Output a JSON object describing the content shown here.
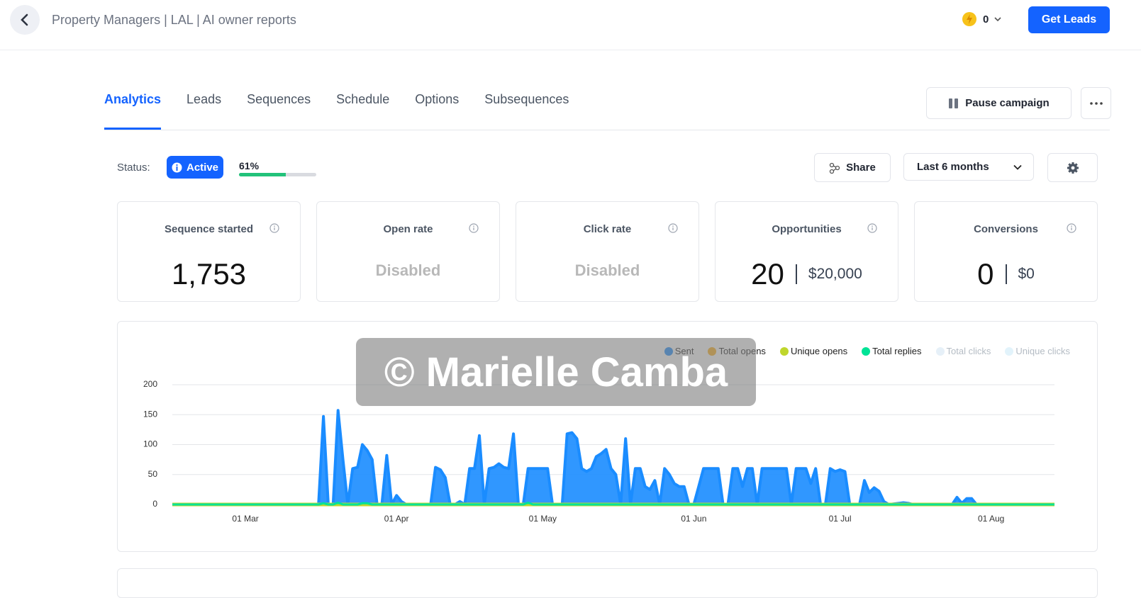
{
  "header": {
    "title": "Property Managers | LAL | AI owner reports",
    "credits": "0",
    "cta": "Get Leads"
  },
  "tabs": [
    "Analytics",
    "Leads",
    "Sequences",
    "Schedule",
    "Options",
    "Subsequences"
  ],
  "active_tab": 0,
  "actions": {
    "pause": "Pause campaign"
  },
  "status": {
    "label": "Status:",
    "badge": "Active",
    "progress": {
      "value": 61,
      "label": "61%"
    }
  },
  "toolbar": {
    "share": "Share",
    "range": "Last 6 months"
  },
  "cards": [
    {
      "title": "Sequence started",
      "value": "1,753"
    },
    {
      "title": "Open rate",
      "value": "Disabled"
    },
    {
      "title": "Click rate",
      "value": "Disabled"
    },
    {
      "title": "Opportunities",
      "value": "20",
      "amount": "$20,000"
    },
    {
      "title": "Conversions",
      "value": "0",
      "amount": "$0"
    }
  ],
  "watermark": "© Marielle Camba",
  "chart_data": {
    "type": "area",
    "x": [
      45,
      75,
      76,
      77,
      78,
      79,
      80,
      81,
      82,
      83,
      84,
      85,
      86,
      87,
      88,
      89,
      90,
      91,
      92,
      93,
      98,
      99,
      100,
      101,
      102,
      103,
      104,
      105,
      106,
      107,
      108,
      109,
      110,
      111,
      112,
      113,
      114,
      115,
      116,
      117,
      118,
      119,
      120,
      121,
      122,
      123,
      125,
      126,
      127,
      128,
      129,
      130,
      131,
      132,
      133,
      134,
      135,
      136,
      137,
      138,
      139,
      140,
      141,
      142,
      143,
      144,
      145,
      146,
      147,
      148,
      149,
      150,
      151,
      152,
      153,
      154,
      155,
      156,
      157,
      158,
      159,
      160,
      161,
      162,
      163,
      164,
      165,
      166,
      167,
      168,
      169,
      170,
      171,
      172,
      173,
      174,
      175,
      176,
      177,
      178,
      179,
      180,
      181,
      182,
      183,
      184,
      186,
      187,
      188,
      189,
      190,
      191,
      192,
      194,
      195,
      196,
      197,
      205,
      206,
      207,
      208,
      209,
      210,
      226
    ],
    "series": [
      {
        "name": "Sent",
        "color": "#1a8cff",
        "values": [
          0,
          0,
          147,
          0,
          0,
          157,
          75,
          0,
          60,
          62,
          100,
          90,
          75,
          0,
          0,
          82,
          0,
          15,
          5,
          0,
          0,
          62,
          58,
          45,
          0,
          0,
          5,
          0,
          60,
          60,
          115,
          0,
          60,
          62,
          68,
          62,
          60,
          118,
          0,
          0,
          60,
          60,
          60,
          60,
          60,
          0,
          0,
          118,
          120,
          110,
          60,
          55,
          60,
          80,
          85,
          92,
          60,
          50,
          0,
          110,
          0,
          60,
          60,
          30,
          25,
          40,
          0,
          60,
          50,
          35,
          30,
          30,
          0,
          0,
          30,
          60,
          60,
          60,
          60,
          0,
          0,
          60,
          60,
          30,
          60,
          60,
          0,
          60,
          60,
          60,
          60,
          60,
          60,
          0,
          60,
          60,
          60,
          35,
          60,
          0,
          0,
          60,
          55,
          58,
          55,
          0,
          0,
          40,
          20,
          28,
          22,
          5,
          0,
          2,
          3,
          2,
          0,
          0,
          12,
          2,
          10,
          10,
          0,
          0
        ]
      },
      {
        "name": "Total opens",
        "color": "#feb019",
        "values": [
          0,
          0,
          0,
          0,
          0,
          0,
          0,
          0,
          0,
          0,
          0,
          0,
          0,
          0,
          0,
          0,
          0,
          0,
          0,
          0,
          0,
          0,
          0,
          0,
          0,
          0,
          0,
          0,
          0,
          0,
          0,
          0,
          0,
          0,
          0,
          0,
          0,
          0,
          0,
          0,
          0,
          0,
          0,
          0,
          0,
          0,
          0,
          0,
          0,
          0,
          0,
          0,
          0,
          0,
          0,
          0,
          0,
          0,
          0,
          0,
          0,
          0,
          0,
          0,
          0,
          0,
          0,
          0,
          0,
          0,
          0,
          0,
          0,
          0,
          0,
          0,
          0,
          0,
          0,
          0,
          0,
          0,
          0,
          0,
          0,
          0,
          0,
          0,
          0,
          0,
          0,
          0,
          0,
          0,
          0,
          0,
          0,
          0,
          0,
          0,
          0,
          0,
          0,
          0,
          0,
          0,
          0,
          0,
          0,
          0,
          0,
          0,
          0,
          0,
          0,
          0,
          0,
          0,
          0,
          0,
          0,
          0,
          0,
          0
        ]
      },
      {
        "name": "Unique opens",
        "color": "#bfd62c",
        "values": [
          0,
          0,
          0,
          0,
          0,
          0,
          0,
          0,
          0,
          0,
          0,
          0,
          0,
          0,
          0,
          0,
          0,
          0,
          0,
          0,
          0,
          0,
          0,
          0,
          0,
          0,
          0,
          0,
          0,
          0,
          0,
          0,
          0,
          0,
          0,
          0,
          0,
          0,
          0,
          0,
          0,
          0,
          0,
          0,
          0,
          0,
          0,
          0,
          0,
          0,
          0,
          0,
          0,
          0,
          0,
          0,
          0,
          0,
          0,
          0,
          0,
          0,
          0,
          0,
          0,
          0,
          0,
          0,
          0,
          0,
          0,
          0,
          0,
          0,
          0,
          0,
          0,
          0,
          0,
          0,
          0,
          0,
          0,
          0,
          0,
          0,
          0,
          0,
          0,
          0,
          0,
          0,
          0,
          0,
          0,
          0,
          0,
          0,
          0,
          0,
          0,
          0,
          0,
          0,
          0,
          0,
          0,
          0,
          0,
          0,
          0,
          0,
          0,
          0,
          0,
          0,
          0,
          0,
          0,
          0,
          0,
          0,
          0,
          0
        ]
      },
      {
        "name": "Total replies",
        "color": "#00e396",
        "values": [
          0,
          0,
          2,
          0,
          0,
          3,
          0,
          0,
          0,
          0,
          2,
          2,
          0,
          0,
          0,
          0,
          0,
          0,
          0,
          0,
          0,
          0,
          0,
          0,
          0,
          0,
          0,
          0,
          0,
          0,
          0,
          0,
          0,
          0,
          0,
          0,
          0,
          0,
          0,
          0,
          3,
          0,
          0,
          0,
          0,
          0,
          0,
          0,
          0,
          0,
          0,
          0,
          0,
          0,
          0,
          0,
          0,
          0,
          0,
          0,
          0,
          0,
          0,
          0,
          0,
          0,
          0,
          0,
          0,
          0,
          0,
          0,
          0,
          0,
          0,
          0,
          0,
          0,
          0,
          0,
          0,
          0,
          0,
          0,
          0,
          0,
          0,
          0,
          0,
          0,
          0,
          0,
          0,
          0,
          0,
          0,
          0,
          0,
          0,
          0,
          0,
          0,
          0,
          0,
          0,
          0,
          0,
          0,
          0,
          0,
          0,
          0,
          0,
          0,
          0,
          0,
          0,
          0,
          0,
          0,
          0,
          0,
          0,
          0
        ]
      },
      {
        "name": "Total clicks",
        "color": "#e6f0f8",
        "hidden": true
      },
      {
        "name": "Unique clicks",
        "color": "#e2f3fb",
        "hidden": true
      }
    ],
    "xlim": [
      45,
      226
    ],
    "xticks": [
      {
        "value": 60,
        "label": "01 Mar"
      },
      {
        "value": 91,
        "label": "01 Apr"
      },
      {
        "value": 121,
        "label": "01 May"
      },
      {
        "value": 152,
        "label": "01 Jun"
      },
      {
        "value": 182,
        "label": "01 Jul"
      },
      {
        "value": 213,
        "label": "01 Aug"
      }
    ],
    "ylim": [
      0,
      200
    ],
    "yticks": [
      0,
      50,
      100,
      150,
      200
    ],
    "grid": true
  }
}
